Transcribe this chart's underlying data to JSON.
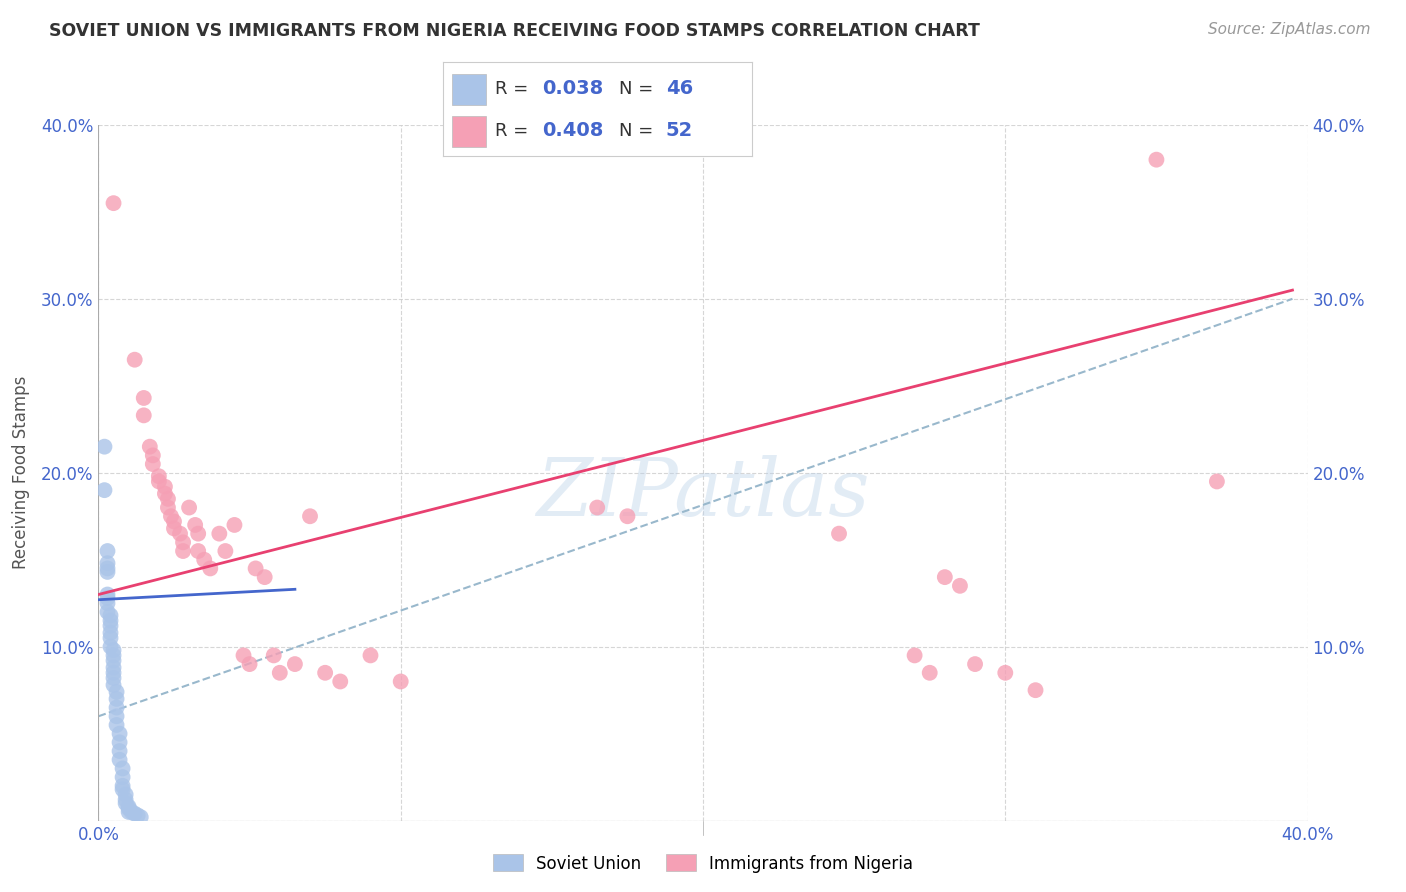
{
  "title": "SOVIET UNION VS IMMIGRANTS FROM NIGERIA RECEIVING FOOD STAMPS CORRELATION CHART",
  "source": "Source: ZipAtlas.com",
  "ylabel": "Receiving Food Stamps",
  "xlim": [
    0.0,
    0.4
  ],
  "ylim": [
    0.0,
    0.4
  ],
  "blue_color": "#aac4e8",
  "pink_color": "#f5a0b5",
  "blue_line_color": "#4466cc",
  "pink_line_color": "#e84070",
  "dashed_line_color": "#99b8cc",
  "watermark": "ZIPatlas",
  "background_color": "#ffffff",
  "grid_color": "#cccccc",
  "title_color": "#333333",
  "axis_label_color": "#4466cc",
  "legend_label_blue": "Soviet Union",
  "legend_label_pink": "Immigrants from Nigeria",
  "blue_scatter": [
    [
      0.002,
      0.215
    ],
    [
      0.002,
      0.19
    ],
    [
      0.003,
      0.155
    ],
    [
      0.003,
      0.148
    ],
    [
      0.003,
      0.145
    ],
    [
      0.003,
      0.143
    ],
    [
      0.003,
      0.13
    ],
    [
      0.003,
      0.128
    ],
    [
      0.003,
      0.125
    ],
    [
      0.003,
      0.12
    ],
    [
      0.004,
      0.118
    ],
    [
      0.004,
      0.115
    ],
    [
      0.004,
      0.112
    ],
    [
      0.004,
      0.108
    ],
    [
      0.004,
      0.105
    ],
    [
      0.004,
      0.1
    ],
    [
      0.005,
      0.098
    ],
    [
      0.005,
      0.095
    ],
    [
      0.005,
      0.092
    ],
    [
      0.005,
      0.088
    ],
    [
      0.005,
      0.085
    ],
    [
      0.005,
      0.082
    ],
    [
      0.005,
      0.078
    ],
    [
      0.006,
      0.074
    ],
    [
      0.006,
      0.07
    ],
    [
      0.006,
      0.065
    ],
    [
      0.006,
      0.06
    ],
    [
      0.006,
      0.055
    ],
    [
      0.007,
      0.05
    ],
    [
      0.007,
      0.045
    ],
    [
      0.007,
      0.04
    ],
    [
      0.007,
      0.035
    ],
    [
      0.008,
      0.03
    ],
    [
      0.008,
      0.025
    ],
    [
      0.008,
      0.02
    ],
    [
      0.008,
      0.018
    ],
    [
      0.009,
      0.015
    ],
    [
      0.009,
      0.012
    ],
    [
      0.009,
      0.01
    ],
    [
      0.01,
      0.008
    ],
    [
      0.01,
      0.007
    ],
    [
      0.01,
      0.005
    ],
    [
      0.011,
      0.005
    ],
    [
      0.012,
      0.004
    ],
    [
      0.013,
      0.003
    ],
    [
      0.014,
      0.002
    ]
  ],
  "pink_scatter": [
    [
      0.005,
      0.355
    ],
    [
      0.012,
      0.265
    ],
    [
      0.015,
      0.243
    ],
    [
      0.015,
      0.233
    ],
    [
      0.017,
      0.215
    ],
    [
      0.018,
      0.21
    ],
    [
      0.018,
      0.205
    ],
    [
      0.02,
      0.198
    ],
    [
      0.02,
      0.195
    ],
    [
      0.022,
      0.192
    ],
    [
      0.022,
      0.188
    ],
    [
      0.023,
      0.185
    ],
    [
      0.023,
      0.18
    ],
    [
      0.024,
      0.175
    ],
    [
      0.025,
      0.172
    ],
    [
      0.025,
      0.168
    ],
    [
      0.027,
      0.165
    ],
    [
      0.028,
      0.16
    ],
    [
      0.028,
      0.155
    ],
    [
      0.03,
      0.18
    ],
    [
      0.032,
      0.17
    ],
    [
      0.033,
      0.165
    ],
    [
      0.033,
      0.155
    ],
    [
      0.035,
      0.15
    ],
    [
      0.037,
      0.145
    ],
    [
      0.04,
      0.165
    ],
    [
      0.042,
      0.155
    ],
    [
      0.045,
      0.17
    ],
    [
      0.048,
      0.095
    ],
    [
      0.05,
      0.09
    ],
    [
      0.052,
      0.145
    ],
    [
      0.055,
      0.14
    ],
    [
      0.058,
      0.095
    ],
    [
      0.06,
      0.085
    ],
    [
      0.065,
      0.09
    ],
    [
      0.07,
      0.175
    ],
    [
      0.075,
      0.085
    ],
    [
      0.08,
      0.08
    ],
    [
      0.09,
      0.095
    ],
    [
      0.1,
      0.08
    ],
    [
      0.165,
      0.18
    ],
    [
      0.175,
      0.175
    ],
    [
      0.245,
      0.165
    ],
    [
      0.27,
      0.095
    ],
    [
      0.275,
      0.085
    ],
    [
      0.28,
      0.14
    ],
    [
      0.285,
      0.135
    ],
    [
      0.29,
      0.09
    ],
    [
      0.3,
      0.085
    ],
    [
      0.31,
      0.075
    ],
    [
      0.35,
      0.38
    ],
    [
      0.37,
      0.195
    ]
  ],
  "blue_line": [
    [
      0.0,
      0.127
    ],
    [
      0.065,
      0.133
    ]
  ],
  "pink_line": [
    [
      0.0,
      0.13
    ],
    [
      0.395,
      0.305
    ]
  ],
  "dashed_line": [
    [
      0.0,
      0.06
    ],
    [
      0.395,
      0.3
    ]
  ]
}
